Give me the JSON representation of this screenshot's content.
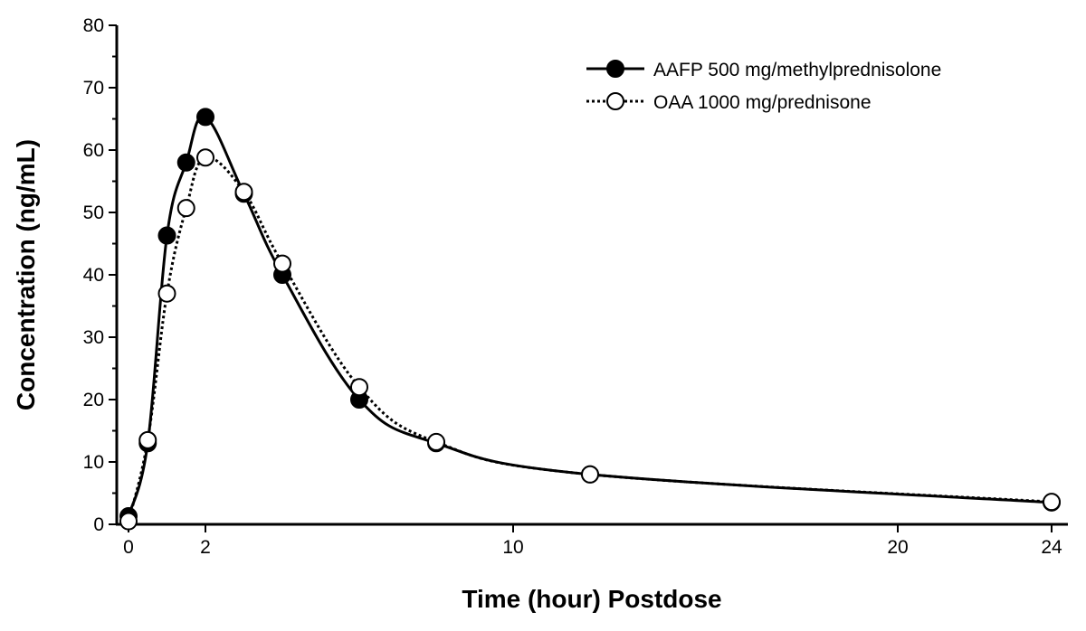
{
  "chart_data": {
    "type": "line",
    "title": "",
    "xlabel": "Time (hour) Postdose",
    "ylabel": "Concentration (ng/mL)",
    "xlim": [
      -0.3,
      24.3
    ],
    "ylim": [
      0,
      80
    ],
    "xticks": [
      0,
      2,
      10,
      20,
      24
    ],
    "yticks": [
      0,
      10,
      20,
      30,
      40,
      50,
      60,
      70,
      80
    ],
    "grid": false,
    "legend_position": "top-right",
    "x": [
      0,
      0.5,
      1,
      1.5,
      2,
      3,
      4,
      6,
      8,
      12,
      24
    ],
    "series": [
      {
        "name": "AAFP 500 mg/methylprednisolone",
        "marker": "filled-circle",
        "line": "solid",
        "values": [
          1.3,
          13,
          46.3,
          58,
          65.3,
          53,
          40,
          20,
          13,
          8,
          3.5
        ]
      },
      {
        "name": "OAA 1000 mg/prednisone",
        "marker": "open-circle",
        "line": "dotted",
        "values": [
          0.5,
          13.5,
          37,
          50.7,
          58.8,
          53.3,
          41.8,
          22,
          13.2,
          8,
          3.6
        ]
      }
    ]
  }
}
